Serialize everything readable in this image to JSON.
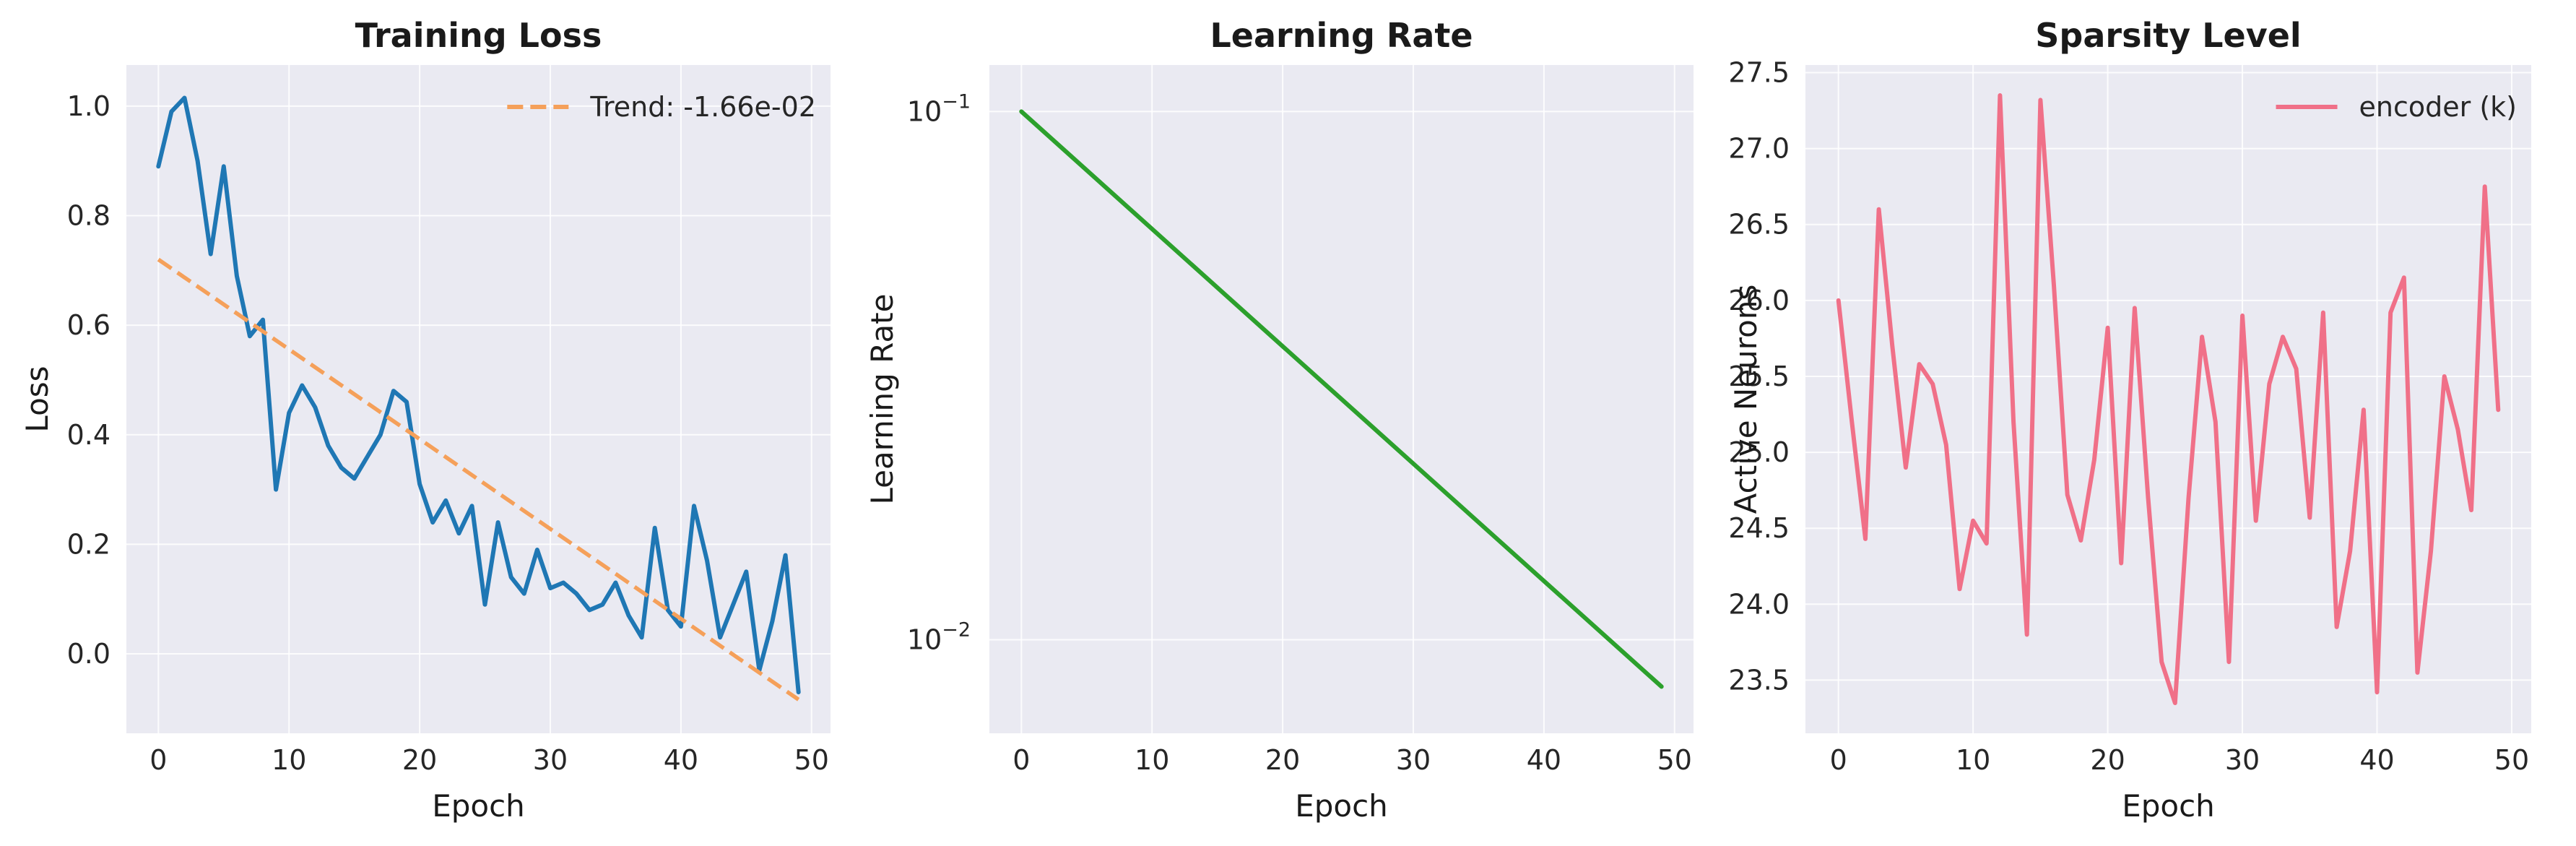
{
  "chart_data": [
    {
      "type": "line",
      "title": "Training Loss",
      "xlabel": "Epoch",
      "ylabel": "Loss",
      "xlim": [
        -2.45,
        51.45
      ],
      "ylim": [
        -0.145,
        1.075
      ],
      "xticks": [
        0,
        10,
        20,
        30,
        40,
        50
      ],
      "yticks": [
        0.0,
        0.2,
        0.4,
        0.6,
        0.8,
        1.0
      ],
      "ytick_labels": [
        "0.0",
        "0.2",
        "0.4",
        "0.6",
        "0.8",
        "1.0"
      ],
      "grid": true,
      "legend": "top-right",
      "series": [
        {
          "color": "#1f77b4",
          "style": "solid",
          "x": [
            0,
            1,
            2,
            3,
            4,
            5,
            6,
            7,
            8,
            9,
            10,
            11,
            12,
            13,
            14,
            15,
            16,
            17,
            18,
            19,
            20,
            21,
            22,
            23,
            24,
            25,
            26,
            27,
            28,
            29,
            30,
            31,
            32,
            33,
            34,
            35,
            36,
            37,
            38,
            39,
            40,
            41,
            42,
            43,
            44,
            45,
            46,
            47,
            48,
            49
          ],
          "values": [
            0.89,
            0.99,
            1.015,
            0.9,
            0.73,
            0.89,
            0.69,
            0.58,
            0.61,
            0.3,
            0.44,
            0.49,
            0.45,
            0.38,
            0.34,
            0.32,
            0.36,
            0.4,
            0.48,
            0.46,
            0.31,
            0.24,
            0.28,
            0.22,
            0.27,
            0.09,
            0.24,
            0.14,
            0.11,
            0.19,
            0.12,
            0.13,
            0.11,
            0.08,
            0.09,
            0.13,
            0.07,
            0.03,
            0.23,
            0.08,
            0.05,
            0.27,
            0.17,
            0.03,
            0.09,
            0.15,
            -0.03,
            0.06,
            0.18,
            -0.07
          ]
        },
        {
          "name": "Trend: -1.66e-02",
          "color": "#f5a05a",
          "style": "dashed",
          "x": [
            0,
            49
          ],
          "values": [
            0.72,
            -0.0834
          ]
        }
      ]
    },
    {
      "type": "line",
      "title": "Learning Rate",
      "xlabel": "Epoch",
      "ylabel": "Learning Rate",
      "yscale": "log",
      "xlim": [
        -2.45,
        51.45
      ],
      "ylim": [
        0.00665,
        0.1225
      ],
      "xticks": [
        0,
        10,
        20,
        30,
        40,
        50
      ],
      "yticks": [
        0.1,
        0.01
      ],
      "ytick_labels": [
        {
          "base": "10",
          "exp": "−1"
        },
        {
          "base": "10",
          "exp": "−2"
        }
      ],
      "grid": true,
      "series": [
        {
          "color": "#2ca02c",
          "style": "solid",
          "x": [
            0,
            49
          ],
          "values": [
            0.1,
            0.00815
          ]
        }
      ]
    },
    {
      "type": "line",
      "title": "Sparsity Level",
      "xlabel": "Epoch",
      "ylabel": "Active Neurons",
      "xlim": [
        -2.45,
        51.45
      ],
      "ylim": [
        23.15,
        27.55
      ],
      "xticks": [
        0,
        10,
        20,
        30,
        40,
        50
      ],
      "yticks": [
        23.5,
        24.0,
        24.5,
        25.0,
        25.5,
        26.0,
        26.5,
        27.0,
        27.5
      ],
      "ytick_labels": [
        "23.5",
        "24.0",
        "24.5",
        "25.0",
        "25.5",
        "26.0",
        "26.5",
        "27.0",
        "27.5"
      ],
      "grid": true,
      "legend": "top-right",
      "series": [
        {
          "name": "encoder (k)",
          "color": "#f07088",
          "style": "solid",
          "x": [
            0,
            1,
            2,
            3,
            4,
            5,
            6,
            7,
            8,
            9,
            10,
            11,
            12,
            13,
            14,
            15,
            16,
            17,
            18,
            19,
            20,
            21,
            22,
            23,
            24,
            25,
            26,
            27,
            28,
            29,
            30,
            31,
            32,
            33,
            34,
            35,
            36,
            37,
            38,
            39,
            40,
            41,
            42,
            43,
            44,
            45,
            46,
            47,
            48,
            49
          ],
          "values": [
            26.0,
            25.2,
            24.43,
            26.6,
            25.7,
            24.9,
            25.58,
            25.45,
            25.05,
            24.1,
            24.55,
            24.4,
            27.35,
            25.2,
            23.8,
            27.32,
            26.1,
            24.72,
            24.42,
            24.95,
            25.82,
            24.27,
            25.95,
            24.7,
            23.62,
            23.35,
            24.7,
            25.76,
            25.2,
            23.62,
            25.9,
            24.55,
            25.45,
            25.76,
            25.55,
            24.57,
            25.92,
            23.85,
            24.35,
            25.28,
            23.42,
            25.92,
            26.15,
            23.55,
            24.35,
            25.5,
            25.15,
            24.62,
            26.75,
            25.28
          ]
        }
      ]
    }
  ]
}
